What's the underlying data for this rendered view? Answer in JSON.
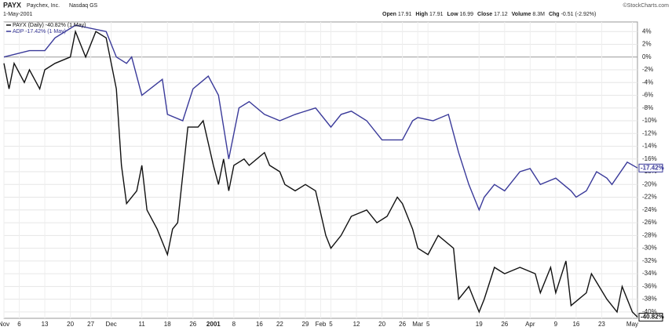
{
  "header": {
    "symbol": "PAYX",
    "company": "Paychex, Inc.",
    "exchange": "Nasdaq GS",
    "date": "1-May-2001",
    "watermark": "©StockCharts.com",
    "quote": [
      {
        "name": "Open",
        "value": 17.91
      },
      {
        "name": "High",
        "value": 17.91
      },
      {
        "name": "Low",
        "value": 16.99
      },
      {
        "name": "Close",
        "value": 17.12
      },
      {
        "name": "Volume",
        "value": "8.3M"
      },
      {
        "name": "Chg",
        "value": "-0.51 (-2.92%)"
      }
    ]
  },
  "chart_data": {
    "type": "line",
    "xlim": [
      0,
      124
    ],
    "xticks": [
      {
        "value": 0,
        "label": "Nov"
      },
      {
        "value": 3,
        "label": "6"
      },
      {
        "value": 8,
        "label": "13"
      },
      {
        "value": 13,
        "label": "20"
      },
      {
        "value": 17,
        "label": "27"
      },
      {
        "value": 21,
        "label": "Dec"
      },
      {
        "value": 27,
        "label": "11"
      },
      {
        "value": 32,
        "label": "18"
      },
      {
        "value": 37,
        "label": "26"
      },
      {
        "value": 41,
        "label": "2001"
      },
      {
        "value": 45,
        "label": "8"
      },
      {
        "value": 50,
        "label": "16"
      },
      {
        "value": 54,
        "label": "22"
      },
      {
        "value": 59,
        "label": "29"
      },
      {
        "value": 62,
        "label": "Feb"
      },
      {
        "value": 64,
        "label": "5"
      },
      {
        "value": 69,
        "label": "12"
      },
      {
        "value": 74,
        "label": "20"
      },
      {
        "value": 78,
        "label": "26"
      },
      {
        "value": 81,
        "label": "Mar"
      },
      {
        "value": 83,
        "label": "5"
      },
      {
        "value": 93,
        "label": "19"
      },
      {
        "value": 98,
        "label": "26"
      },
      {
        "value": 103,
        "label": "Apr"
      },
      {
        "value": 108,
        "label": "9"
      },
      {
        "value": 112,
        "label": "16"
      },
      {
        "value": 117,
        "label": "23"
      },
      {
        "value": 123,
        "label": "May"
      }
    ],
    "ylim": [
      -41,
      5.5
    ],
    "yticks": [
      {
        "value": 4,
        "label": "4%"
      },
      {
        "value": 2,
        "label": "2%"
      },
      {
        "value": 0,
        "label": "0%"
      },
      {
        "value": -2,
        "label": "-2%"
      },
      {
        "value": -4,
        "label": "-4%"
      },
      {
        "value": -6,
        "label": "-6%"
      },
      {
        "value": -8,
        "label": "-8%"
      },
      {
        "value": -10,
        "label": "-10%"
      },
      {
        "value": -12,
        "label": "-12%"
      },
      {
        "value": -14,
        "label": "-14%"
      },
      {
        "value": -16,
        "label": "-16%"
      },
      {
        "value": -18,
        "label": "-18%"
      },
      {
        "value": -20,
        "label": "-20%"
      },
      {
        "value": -22,
        "label": "-22%"
      },
      {
        "value": -24,
        "label": "-24%"
      },
      {
        "value": -26,
        "label": "-26%"
      },
      {
        "value": -28,
        "label": "-28%"
      },
      {
        "value": -30,
        "label": "-30%"
      },
      {
        "value": -32,
        "label": "-32%"
      },
      {
        "value": -34,
        "label": "-34%"
      },
      {
        "value": -36,
        "label": "-36%"
      },
      {
        "value": -38,
        "label": "-38%"
      },
      {
        "value": -40,
        "label": "-40%"
      }
    ],
    "grid": true,
    "series": [
      {
        "name": "PAYX (Daily) -40.82% (1 May)",
        "color": "#111111",
        "end_label": {
          "value": -40.82,
          "label": "-40.82%"
        },
        "x": [
          0,
          1,
          2,
          4,
          5,
          7,
          8,
          10,
          13,
          14,
          16,
          18,
          20,
          22,
          23,
          24,
          26,
          27,
          28,
          30,
          32,
          33,
          34,
          36,
          38,
          39,
          41,
          42,
          43,
          44,
          45,
          47,
          48,
          51,
          52,
          54,
          55,
          57,
          59,
          61,
          63,
          64,
          66,
          68,
          71,
          73,
          75,
          77,
          78,
          80,
          81,
          83,
          85,
          88,
          89,
          91,
          92,
          93,
          94,
          96,
          98,
          101,
          104,
          105,
          107,
          108,
          110,
          111,
          114,
          115,
          118,
          120,
          121,
          123,
          124
        ],
        "values": [
          -1,
          -5,
          -1,
          -4,
          -2,
          -5,
          -2,
          -1,
          0,
          4,
          0,
          4,
          3,
          -5,
          -17,
          -23,
          -21,
          -17,
          -24,
          -27,
          -31,
          -27,
          -26,
          -11,
          -11,
          -10,
          -17,
          -20,
          -16,
          -21,
          -17,
          -16,
          -17,
          -15,
          -17,
          -18,
          -20,
          -21,
          -20,
          -21,
          -28,
          -30,
          -28,
          -25,
          -24,
          -26,
          -25,
          -22,
          -23,
          -27,
          -30,
          -31,
          -28,
          -30,
          -38,
          -36,
          -38,
          -40,
          -38,
          -33,
          -34,
          -33,
          -34,
          -37,
          -33,
          -37,
          -32,
          -39,
          -37,
          -34,
          -38,
          -40,
          -36,
          -40,
          -40.8
        ]
      },
      {
        "name": "ADP -17.42% (1 May)",
        "color": "#3a3a9a",
        "end_label": {
          "value": -17.42,
          "label": "-17.42%"
        },
        "x": [
          0,
          5,
          8,
          10,
          14,
          20,
          22,
          24,
          25,
          27,
          31,
          32,
          35,
          37,
          40,
          42,
          44,
          46,
          48,
          51,
          54,
          57,
          61,
          64,
          66,
          68,
          71,
          74,
          78,
          80,
          81,
          84,
          87,
          89,
          91,
          93,
          94,
          96,
          98,
          101,
          103,
          105,
          108,
          111,
          112,
          114,
          116,
          118,
          119,
          122,
          124
        ],
        "values": [
          0,
          1,
          1,
          3,
          5,
          4,
          0,
          -1,
          0,
          -6,
          -3.5,
          -9,
          -10,
          -5,
          -3,
          -6,
          -16,
          -8,
          -7,
          -9,
          -10,
          -9,
          -8,
          -11,
          -9,
          -8.5,
          -10,
          -13,
          -13,
          -10,
          -9.5,
          -10,
          -9,
          -15,
          -20,
          -24,
          -22,
          -20,
          -21,
          -18,
          -17.5,
          -20,
          -19,
          -21,
          -22,
          -21,
          -18,
          -19,
          -20,
          -16.5,
          -17.4
        ]
      }
    ]
  }
}
